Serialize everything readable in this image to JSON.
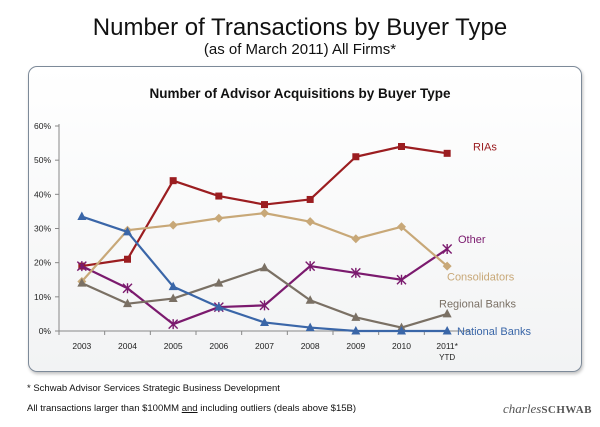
{
  "header": {
    "title": "Number of Transactions by Buyer Type",
    "subtitle": "(as of March 2011) All Firms*"
  },
  "footer": {
    "note1": "* Schwab Advisor Services Strategic Business Development",
    "note2_pre": "All transactions larger than $100MM ",
    "note2_u": "and",
    "note2_post": " including outliers (deals above $15B)",
    "brand_script": "charles",
    "brand_caps": "SCHWAB"
  },
  "chart_data": {
    "type": "line",
    "title": "Number of Advisor Acquisitions by Buyer Type",
    "categories": [
      "2003",
      "2004",
      "2005",
      "2006",
      "2007",
      "2008",
      "2009",
      "2010",
      "2011*"
    ],
    "category_sublabels": [
      "",
      "",
      "",
      "",
      "",
      "",
      "",
      "",
      "YTD"
    ],
    "ylim": [
      0,
      60
    ],
    "yticks": [
      0,
      10,
      20,
      30,
      40,
      50,
      60
    ],
    "ytick_labels": [
      "0%",
      "10%",
      "20%",
      "30%",
      "40%",
      "50%",
      "60%"
    ],
    "grid": false,
    "legend": "labels at line ends",
    "series": [
      {
        "name": "RIAs",
        "color": "#9b1d20",
        "marker": "square",
        "values": [
          19.0,
          21.0,
          44.0,
          39.5,
          37.0,
          38.5,
          51.0,
          54.0,
          52.0
        ]
      },
      {
        "name": "Other",
        "color": "#7b1a6e",
        "marker": "star",
        "values": [
          19.0,
          12.5,
          2.0,
          7.0,
          7.5,
          19.0,
          17.0,
          15.0,
          24.0
        ]
      },
      {
        "name": "Consolidators",
        "color": "#c8a878",
        "marker": "diamond",
        "values": [
          14.5,
          29.5,
          31.0,
          33.0,
          34.5,
          32.0,
          27.0,
          30.5,
          19.0
        ]
      },
      {
        "name": "Regional Banks",
        "color": "#7a7064",
        "marker": "triangle",
        "values": [
          14.0,
          8.0,
          9.5,
          14.0,
          18.5,
          9.0,
          4.0,
          1.0,
          5.0
        ]
      },
      {
        "name": "National Banks",
        "color": "#3a66a8",
        "marker": "triangle",
        "values": [
          33.5,
          29.0,
          13.0,
          7.0,
          2.5,
          1.0,
          0.0,
          0.0,
          0.0
        ]
      }
    ]
  }
}
